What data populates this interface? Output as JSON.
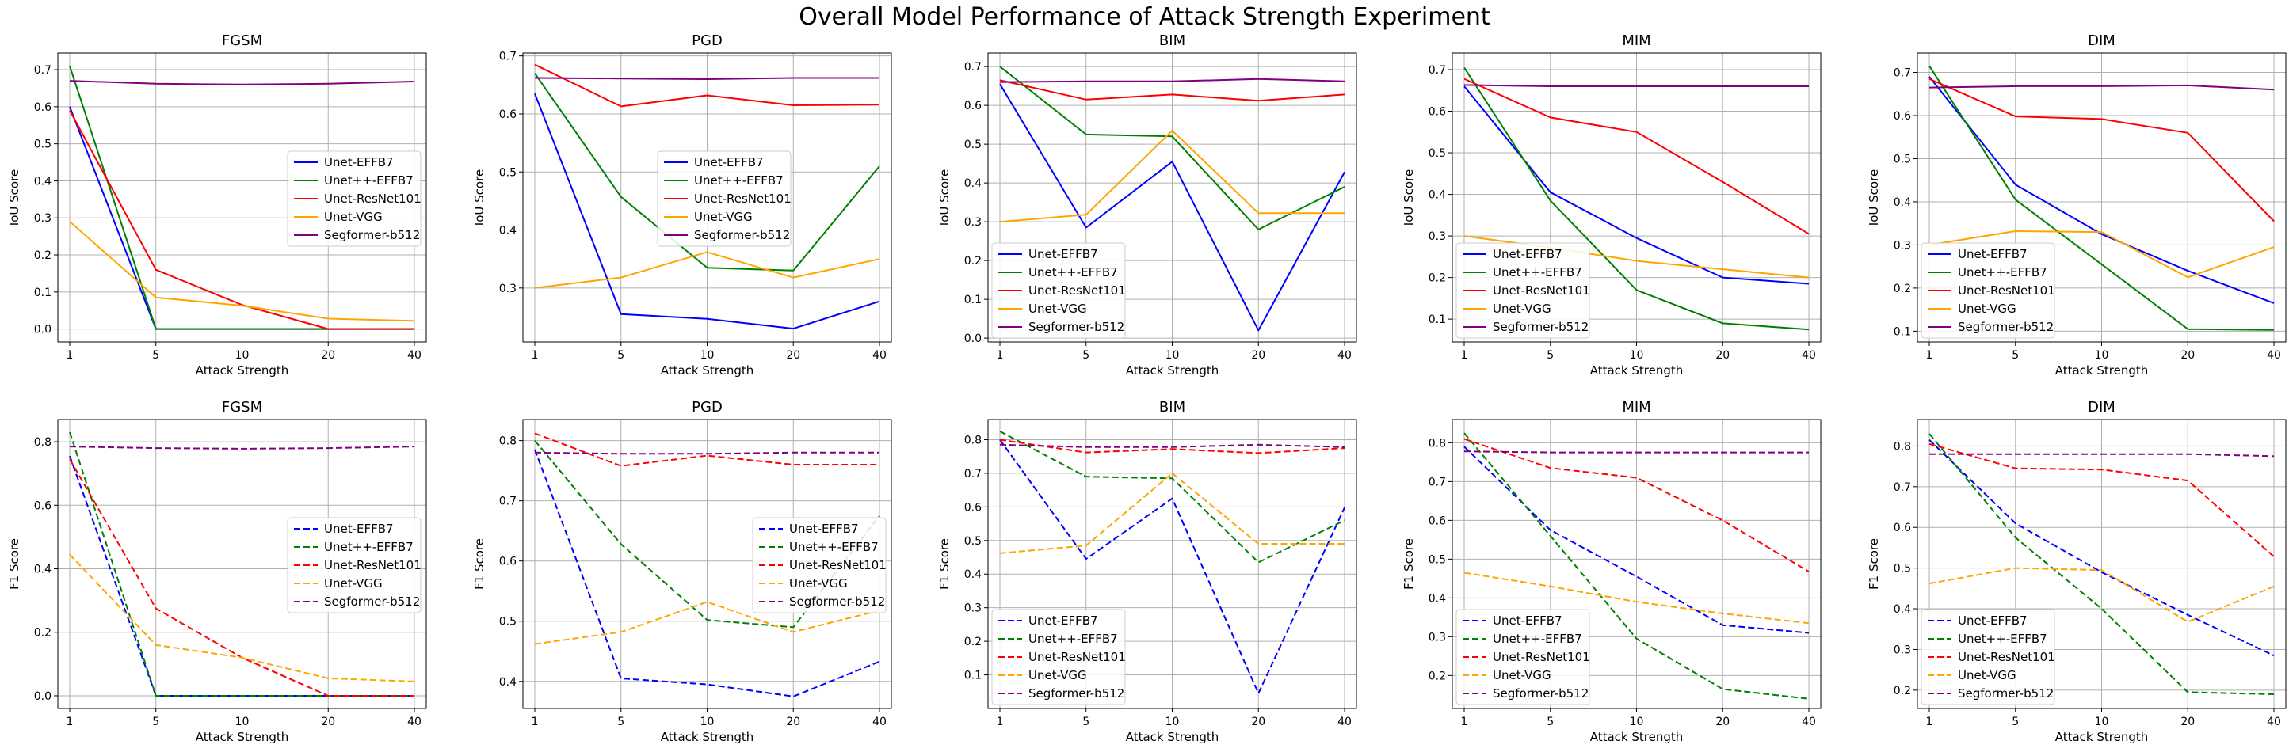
{
  "figure": {
    "title": "Overall Model Performance of Attack Strength Experiment"
  },
  "styles": {
    "colors": {
      "Unet-EFFB7": "#0000ff",
      "Unet++-EFFB7": "#008000",
      "Unet-ResNet101": "#ff0000",
      "Unet-VGG": "#ffa500",
      "Segformer-b512": "#800080"
    }
  },
  "chart_data": [
    {
      "type": "line",
      "title": "FGSM",
      "metric": "iou",
      "xlabel": "Attack Strength",
      "ylabel": "IoU Score",
      "categories": [
        "1",
        "5",
        "10",
        "20",
        "40"
      ],
      "ylim": [
        -0.035,
        0.745
      ],
      "yticks": [
        0.0,
        0.1,
        0.2,
        0.3,
        0.4,
        0.5,
        0.6,
        0.7
      ],
      "ytick_labels": [
        "0.0",
        "0.1",
        "0.2",
        "0.3",
        "0.4",
        "0.5",
        "0.6",
        "0.7"
      ],
      "line_style": "solid",
      "legend": "center-right",
      "grid": true,
      "series": [
        {
          "name": "Unet-EFFB7",
          "values": [
            0.6,
            0.0,
            0.0,
            0.0,
            0.0
          ]
        },
        {
          "name": "Unet++-EFFB7",
          "values": [
            0.71,
            0.0,
            0.0,
            0.0,
            0.0
          ]
        },
        {
          "name": "Unet-ResNet101",
          "values": [
            0.59,
            0.16,
            0.065,
            0.0,
            0.0
          ]
        },
        {
          "name": "Unet-VGG",
          "values": [
            0.29,
            0.085,
            0.063,
            0.028,
            0.022
          ]
        },
        {
          "name": "Segformer-b512",
          "values": [
            0.67,
            0.662,
            0.66,
            0.662,
            0.668
          ]
        }
      ]
    },
    {
      "type": "line",
      "title": "PGD",
      "metric": "iou",
      "xlabel": "Attack Strength",
      "ylabel": "IoU Score",
      "categories": [
        "1",
        "5",
        "10",
        "20",
        "40"
      ],
      "ylim": [
        0.207,
        0.705
      ],
      "yticks": [
        0.3,
        0.4,
        0.5,
        0.6,
        0.7
      ],
      "ytick_labels": [
        "0.3",
        "0.4",
        "0.5",
        "0.6",
        "0.7"
      ],
      "line_style": "solid",
      "legend": "center",
      "grid": true,
      "series": [
        {
          "name": "Unet-EFFB7",
          "values": [
            0.635,
            0.255,
            0.247,
            0.23,
            0.277
          ]
        },
        {
          "name": "Unet++-EFFB7",
          "values": [
            0.67,
            0.457,
            0.335,
            0.33,
            0.51
          ]
        },
        {
          "name": "Unet-ResNet101",
          "values": [
            0.685,
            0.613,
            0.632,
            0.615,
            0.616
          ]
        },
        {
          "name": "Unet-VGG",
          "values": [
            0.3,
            0.318,
            0.362,
            0.318,
            0.35
          ]
        },
        {
          "name": "Segformer-b512",
          "values": [
            0.662,
            0.661,
            0.66,
            0.662,
            0.662
          ]
        }
      ]
    },
    {
      "type": "line",
      "title": "BIM",
      "metric": "iou",
      "xlabel": "Attack Strength",
      "ylabel": "IoU Score",
      "categories": [
        "1",
        "5",
        "10",
        "20",
        "40"
      ],
      "ylim": [
        -0.01,
        0.735
      ],
      "yticks": [
        0.0,
        0.1,
        0.2,
        0.3,
        0.4,
        0.5,
        0.6,
        0.7
      ],
      "ytick_labels": [
        "0.0",
        "0.1",
        "0.2",
        "0.3",
        "0.4",
        "0.5",
        "0.6",
        "0.7"
      ],
      "line_style": "solid",
      "legend": "lower-left",
      "grid": true,
      "series": [
        {
          "name": "Unet-EFFB7",
          "values": [
            0.655,
            0.285,
            0.455,
            0.02,
            0.428
          ]
        },
        {
          "name": "Unet++-EFFB7",
          "values": [
            0.7,
            0.525,
            0.52,
            0.28,
            0.39
          ]
        },
        {
          "name": "Unet-ResNet101",
          "values": [
            0.665,
            0.615,
            0.628,
            0.612,
            0.628
          ]
        },
        {
          "name": "Unet-VGG",
          "values": [
            0.3,
            0.318,
            0.535,
            0.322,
            0.322
          ]
        },
        {
          "name": "Segformer-b512",
          "values": [
            0.66,
            0.662,
            0.662,
            0.668,
            0.662
          ]
        }
      ]
    },
    {
      "type": "line",
      "title": "MIM",
      "metric": "iou",
      "xlabel": "Attack Strength",
      "ylabel": "IoU Score",
      "categories": [
        "1",
        "5",
        "10",
        "20",
        "40"
      ],
      "ylim": [
        0.045,
        0.74
      ],
      "yticks": [
        0.1,
        0.2,
        0.3,
        0.4,
        0.5,
        0.6,
        0.7
      ],
      "ytick_labels": [
        "0.1",
        "0.2",
        "0.3",
        "0.4",
        "0.5",
        "0.6",
        "0.7"
      ],
      "line_style": "solid",
      "legend": "lower-left",
      "grid": true,
      "series": [
        {
          "name": "Unet-EFFB7",
          "values": [
            0.66,
            0.405,
            0.295,
            0.2,
            0.185
          ]
        },
        {
          "name": "Unet++-EFFB7",
          "values": [
            0.705,
            0.385,
            0.17,
            0.09,
            0.075
          ]
        },
        {
          "name": "Unet-ResNet101",
          "values": [
            0.678,
            0.585,
            0.55,
            0.43,
            0.305
          ]
        },
        {
          "name": "Unet-VGG",
          "values": [
            0.3,
            0.272,
            0.24,
            0.22,
            0.2
          ]
        },
        {
          "name": "Segformer-b512",
          "values": [
            0.663,
            0.66,
            0.66,
            0.66,
            0.66
          ]
        }
      ]
    },
    {
      "type": "line",
      "title": "DIM",
      "metric": "iou",
      "xlabel": "Attack Strength",
      "ylabel": "IoU Score",
      "categories": [
        "1",
        "5",
        "10",
        "20",
        "40"
      ],
      "ylim": [
        0.075,
        0.745
      ],
      "yticks": [
        0.1,
        0.2,
        0.3,
        0.4,
        0.5,
        0.6,
        0.7
      ],
      "ytick_labels": [
        "0.1",
        "0.2",
        "0.3",
        "0.4",
        "0.5",
        "0.6",
        "0.7"
      ],
      "line_style": "solid",
      "legend": "lower-left",
      "grid": true,
      "series": [
        {
          "name": "Unet-EFFB7",
          "values": [
            0.69,
            0.44,
            0.325,
            0.24,
            0.165
          ]
        },
        {
          "name": "Unet++-EFFB7",
          "values": [
            0.715,
            0.405,
            0.255,
            0.105,
            0.103
          ]
        },
        {
          "name": "Unet-ResNet101",
          "values": [
            0.685,
            0.598,
            0.592,
            0.56,
            0.355
          ]
        },
        {
          "name": "Unet-VGG",
          "values": [
            0.3,
            0.332,
            0.33,
            0.225,
            0.295
          ]
        },
        {
          "name": "Segformer-b512",
          "values": [
            0.665,
            0.668,
            0.668,
            0.67,
            0.66
          ]
        }
      ]
    },
    {
      "type": "line",
      "title": "FGSM",
      "metric": "f1",
      "xlabel": "Attack Strength",
      "ylabel": "F1 Score",
      "categories": [
        "1",
        "5",
        "10",
        "20",
        "40"
      ],
      "ylim": [
        -0.04,
        0.87
      ],
      "yticks": [
        0.0,
        0.2,
        0.4,
        0.6,
        0.8
      ],
      "ytick_labels": [
        "0.0",
        "0.2",
        "0.4",
        "0.6",
        "0.8"
      ],
      "line_style": "dashed",
      "legend": "center-right",
      "grid": true,
      "series": [
        {
          "name": "Unet-EFFB7",
          "values": [
            0.755,
            0.0,
            0.0,
            0.0,
            0.0
          ]
        },
        {
          "name": "Unet++-EFFB7",
          "values": [
            0.83,
            0.0,
            0.0,
            0.0,
            0.0
          ]
        },
        {
          "name": "Unet-ResNet101",
          "values": [
            0.745,
            0.275,
            0.12,
            0.0,
            0.0
          ]
        },
        {
          "name": "Unet-VGG",
          "values": [
            0.445,
            0.16,
            0.12,
            0.055,
            0.045
          ]
        },
        {
          "name": "Segformer-b512",
          "values": [
            0.785,
            0.78,
            0.778,
            0.78,
            0.785
          ]
        }
      ]
    },
    {
      "type": "line",
      "title": "PGD",
      "metric": "f1",
      "xlabel": "Attack Strength",
      "ylabel": "F1 Score",
      "categories": [
        "1",
        "5",
        "10",
        "20",
        "40"
      ],
      "ylim": [
        0.355,
        0.835
      ],
      "yticks": [
        0.4,
        0.5,
        0.6,
        0.7,
        0.8
      ],
      "ytick_labels": [
        "0.4",
        "0.5",
        "0.6",
        "0.7",
        "0.8"
      ],
      "line_style": "dashed",
      "legend": "center-right",
      "grid": true,
      "series": [
        {
          "name": "Unet-EFFB7",
          "values": [
            0.785,
            0.405,
            0.395,
            0.375,
            0.433
          ]
        },
        {
          "name": "Unet++-EFFB7",
          "values": [
            0.8,
            0.628,
            0.502,
            0.49,
            0.675
          ]
        },
        {
          "name": "Unet-ResNet101",
          "values": [
            0.812,
            0.758,
            0.775,
            0.76,
            0.76
          ]
        },
        {
          "name": "Unet-VGG",
          "values": [
            0.462,
            0.482,
            0.532,
            0.482,
            0.518
          ]
        },
        {
          "name": "Segformer-b512",
          "values": [
            0.78,
            0.778,
            0.778,
            0.78,
            0.78
          ]
        }
      ]
    },
    {
      "type": "line",
      "title": "BIM",
      "metric": "f1",
      "xlabel": "Attack Strength",
      "ylabel": "F1 Score",
      "categories": [
        "1",
        "5",
        "10",
        "20",
        "40"
      ],
      "ylim": [
        0.0,
        0.86
      ],
      "yticks": [
        0.1,
        0.2,
        0.3,
        0.4,
        0.5,
        0.6,
        0.7,
        0.8
      ],
      "ytick_labels": [
        "0.1",
        "0.2",
        "0.3",
        "0.4",
        "0.5",
        "0.6",
        "0.7",
        "0.8"
      ],
      "line_style": "dashed",
      "legend": "lower-left",
      "grid": true,
      "series": [
        {
          "name": "Unet-EFFB7",
          "values": [
            0.8,
            0.445,
            0.625,
            0.045,
            0.598
          ]
        },
        {
          "name": "Unet++-EFFB7",
          "values": [
            0.825,
            0.69,
            0.685,
            0.435,
            0.56
          ]
        },
        {
          "name": "Unet-ResNet101",
          "values": [
            0.8,
            0.762,
            0.772,
            0.76,
            0.775
          ]
        },
        {
          "name": "Unet-VGG",
          "values": [
            0.462,
            0.485,
            0.7,
            0.49,
            0.49
          ]
        },
        {
          "name": "Segformer-b512",
          "values": [
            0.785,
            0.778,
            0.778,
            0.785,
            0.778
          ]
        }
      ]
    },
    {
      "type": "line",
      "title": "MIM",
      "metric": "f1",
      "xlabel": "Attack Strength",
      "ylabel": "F1 Score",
      "categories": [
        "1",
        "5",
        "10",
        "20",
        "40"
      ],
      "ylim": [
        0.115,
        0.86
      ],
      "yticks": [
        0.2,
        0.3,
        0.4,
        0.5,
        0.6,
        0.7,
        0.8
      ],
      "ytick_labels": [
        "0.2",
        "0.3",
        "0.4",
        "0.5",
        "0.6",
        "0.7",
        "0.8"
      ],
      "line_style": "dashed",
      "legend": "lower-left",
      "grid": true,
      "series": [
        {
          "name": "Unet-EFFB7",
          "values": [
            0.79,
            0.575,
            0.455,
            0.33,
            0.31
          ]
        },
        {
          "name": "Unet++-EFFB7",
          "values": [
            0.825,
            0.56,
            0.295,
            0.165,
            0.14
          ]
        },
        {
          "name": "Unet-ResNet101",
          "values": [
            0.81,
            0.735,
            0.71,
            0.6,
            0.468
          ]
        },
        {
          "name": "Unet-VGG",
          "values": [
            0.465,
            0.43,
            0.39,
            0.36,
            0.335
          ]
        },
        {
          "name": "Segformer-b512",
          "values": [
            0.778,
            0.775,
            0.775,
            0.775,
            0.775
          ]
        }
      ]
    },
    {
      "type": "line",
      "title": "DIM",
      "metric": "f1",
      "xlabel": "Attack Strength",
      "ylabel": "F1 Score",
      "categories": [
        "1",
        "5",
        "10",
        "20",
        "40"
      ],
      "ylim": [
        0.155,
        0.865
      ],
      "yticks": [
        0.2,
        0.3,
        0.4,
        0.5,
        0.6,
        0.7,
        0.8
      ],
      "ytick_labels": [
        "0.2",
        "0.3",
        "0.4",
        "0.5",
        "0.6",
        "0.7",
        "0.8"
      ],
      "line_style": "dashed",
      "legend": "lower-left",
      "grid": true,
      "series": [
        {
          "name": "Unet-EFFB7",
          "values": [
            0.815,
            0.61,
            0.49,
            0.385,
            0.285
          ]
        },
        {
          "name": "Unet++-EFFB7",
          "values": [
            0.83,
            0.575,
            0.4,
            0.195,
            0.19
          ]
        },
        {
          "name": "Unet-ResNet101",
          "values": [
            0.805,
            0.745,
            0.742,
            0.715,
            0.528
          ]
        },
        {
          "name": "Unet-VGG",
          "values": [
            0.462,
            0.5,
            0.495,
            0.368,
            0.455
          ]
        },
        {
          "name": "Segformer-b512",
          "values": [
            0.78,
            0.78,
            0.78,
            0.78,
            0.775
          ]
        }
      ]
    }
  ]
}
